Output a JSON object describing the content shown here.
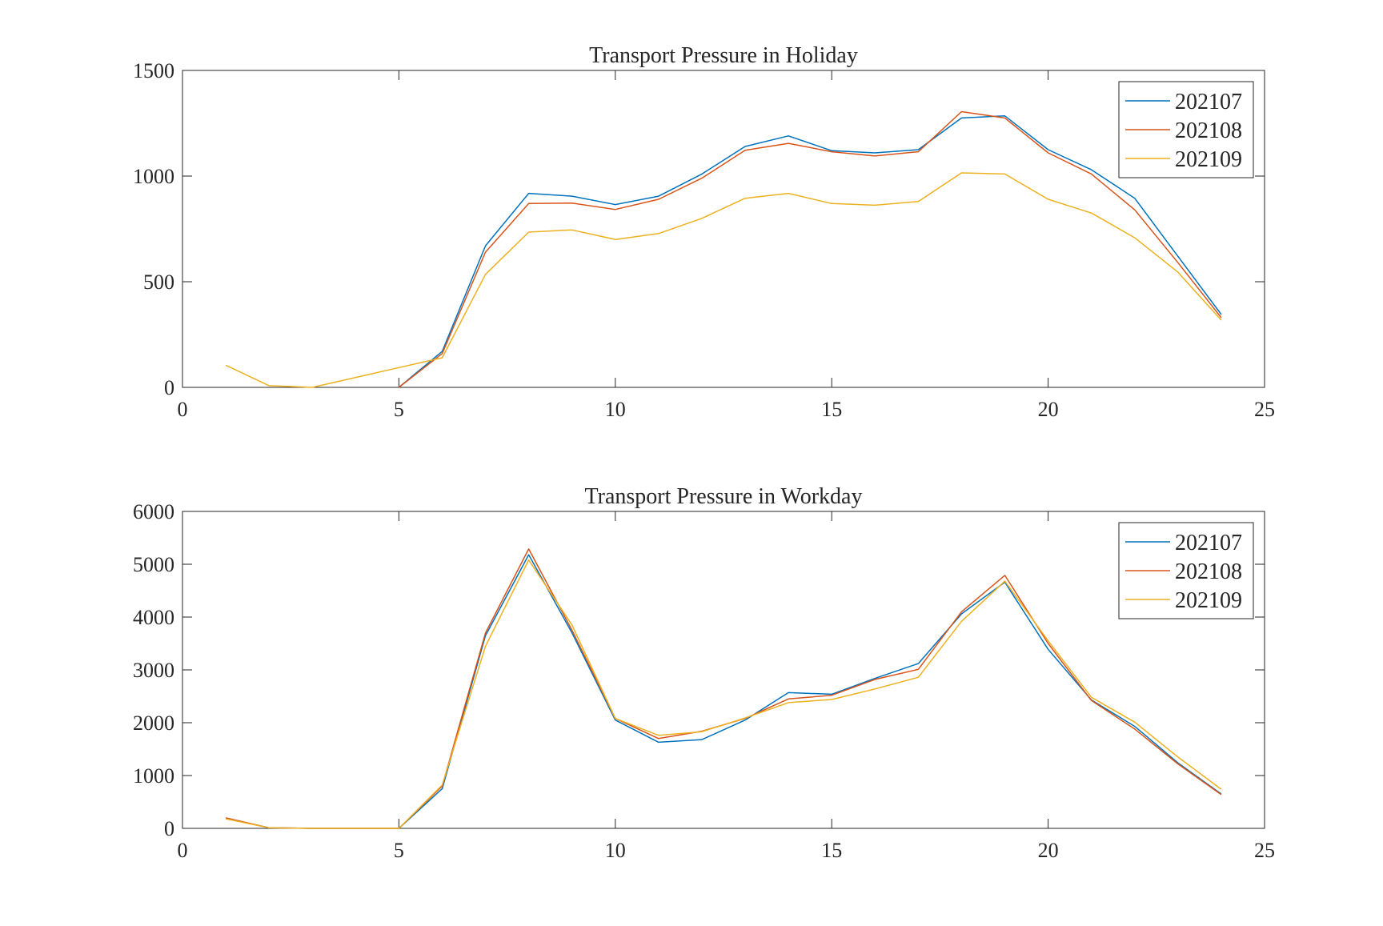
{
  "chart_data": [
    {
      "type": "line",
      "title": "Transport Pressure in Holiday",
      "xlabel": "",
      "ylabel": "",
      "xlim": [
        0,
        25
      ],
      "ylim": [
        0,
        1500
      ],
      "xticks": [
        0,
        5,
        10,
        15,
        20,
        25
      ],
      "yticks": [
        0,
        500,
        1000,
        1500
      ],
      "grid": false,
      "legend_position": "top-right",
      "series": [
        {
          "name": "202107",
          "color": "#0072BD",
          "points": [
            [
              5,
              0
            ],
            [
              6,
              170
            ],
            [
              7,
              670
            ],
            [
              8,
              918
            ],
            [
              9,
              905
            ],
            [
              10,
              865
            ],
            [
              11,
              905
            ],
            [
              12,
              1010
            ],
            [
              13,
              1140
            ],
            [
              14,
              1190
            ],
            [
              15,
              1120
            ],
            [
              16,
              1110
            ],
            [
              17,
              1125
            ],
            [
              18,
              1275
            ],
            [
              19,
              1285
            ],
            [
              20,
              1125
            ],
            [
              21,
              1030
            ],
            [
              22,
              895
            ],
            [
              23,
              620
            ],
            [
              24,
              345
            ]
          ]
        },
        {
          "name": "202108",
          "color": "#D95319",
          "points": [
            [
              5,
              0
            ],
            [
              6,
              160
            ],
            [
              7,
              640
            ],
            [
              8,
              870
            ],
            [
              9,
              872
            ],
            [
              10,
              842
            ],
            [
              11,
              890
            ],
            [
              12,
              990
            ],
            [
              13,
              1122
            ],
            [
              14,
              1155
            ],
            [
              15,
              1115
            ],
            [
              16,
              1095
            ],
            [
              17,
              1115
            ],
            [
              18,
              1305
            ],
            [
              19,
              1275
            ],
            [
              20,
              1110
            ],
            [
              21,
              1010
            ],
            [
              22,
              840
            ],
            [
              23,
              590
            ],
            [
              24,
              330
            ]
          ]
        },
        {
          "name": "202109",
          "color": "#EDB120",
          "points": [
            [
              1,
              105
            ],
            [
              2,
              8
            ],
            [
              3,
              0
            ],
            [
              6,
              140
            ],
            [
              7,
              535
            ],
            [
              8,
              735
            ],
            [
              9,
              745
            ],
            [
              10,
              700
            ],
            [
              11,
              728
            ],
            [
              12,
              800
            ],
            [
              13,
              895
            ],
            [
              14,
              918
            ],
            [
              15,
              870
            ],
            [
              16,
              862
            ],
            [
              17,
              880
            ],
            [
              18,
              1015
            ],
            [
              19,
              1010
            ],
            [
              20,
              890
            ],
            [
              21,
              825
            ],
            [
              22,
              708
            ],
            [
              23,
              545
            ],
            [
              24,
              318
            ]
          ]
        }
      ]
    },
    {
      "type": "line",
      "title": "Transport Pressure in Workday",
      "xlabel": "",
      "ylabel": "",
      "xlim": [
        0,
        25
      ],
      "ylim": [
        0,
        6000
      ],
      "xticks": [
        0,
        5,
        10,
        15,
        20,
        25
      ],
      "yticks": [
        0,
        1000,
        2000,
        3000,
        4000,
        5000,
        6000
      ],
      "grid": false,
      "legend_position": "top-right",
      "series": [
        {
          "name": "202107",
          "color": "#0072BD",
          "points": [
            [
              1,
              190
            ],
            [
              2,
              10
            ],
            [
              3,
              0
            ],
            [
              5,
              0
            ],
            [
              6,
              750
            ],
            [
              7,
              3650
            ],
            [
              8,
              5180
            ],
            [
              9,
              3700
            ],
            [
              10,
              2050
            ],
            [
              11,
              1630
            ],
            [
              12,
              1680
            ],
            [
              13,
              2050
            ],
            [
              14,
              2570
            ],
            [
              15,
              2540
            ],
            [
              16,
              2840
            ],
            [
              17,
              3120
            ],
            [
              18,
              4060
            ],
            [
              19,
              4660
            ],
            [
              20,
              3390
            ],
            [
              21,
              2430
            ],
            [
              22,
              1930
            ],
            [
              23,
              1240
            ],
            [
              24,
              650
            ]
          ]
        },
        {
          "name": "202108",
          "color": "#D95319",
          "points": [
            [
              1,
              200
            ],
            [
              2,
              10
            ],
            [
              3,
              0
            ],
            [
              5,
              0
            ],
            [
              6,
              800
            ],
            [
              7,
              3700
            ],
            [
              8,
              5290
            ],
            [
              9,
              3750
            ],
            [
              10,
              2080
            ],
            [
              11,
              1700
            ],
            [
              12,
              1840
            ],
            [
              13,
              2080
            ],
            [
              14,
              2450
            ],
            [
              15,
              2520
            ],
            [
              16,
              2820
            ],
            [
              17,
              3010
            ],
            [
              18,
              4100
            ],
            [
              19,
              4790
            ],
            [
              20,
              3500
            ],
            [
              21,
              2420
            ],
            [
              22,
              1880
            ],
            [
              23,
              1220
            ],
            [
              24,
              640
            ]
          ]
        },
        {
          "name": "202109",
          "color": "#EDB120",
          "points": [
            [
              1,
              180
            ],
            [
              2,
              10
            ],
            [
              3,
              0
            ],
            [
              5,
              0
            ],
            [
              6,
              820
            ],
            [
              7,
              3450
            ],
            [
              8,
              5080
            ],
            [
              9,
              3850
            ],
            [
              10,
              2080
            ],
            [
              11,
              1760
            ],
            [
              12,
              1830
            ],
            [
              13,
              2090
            ],
            [
              14,
              2380
            ],
            [
              15,
              2440
            ],
            [
              16,
              2640
            ],
            [
              17,
              2860
            ],
            [
              18,
              3920
            ],
            [
              19,
              4680
            ],
            [
              20,
              3550
            ],
            [
              21,
              2480
            ],
            [
              22,
              2010
            ],
            [
              23,
              1350
            ],
            [
              24,
              740
            ]
          ]
        }
      ]
    }
  ]
}
